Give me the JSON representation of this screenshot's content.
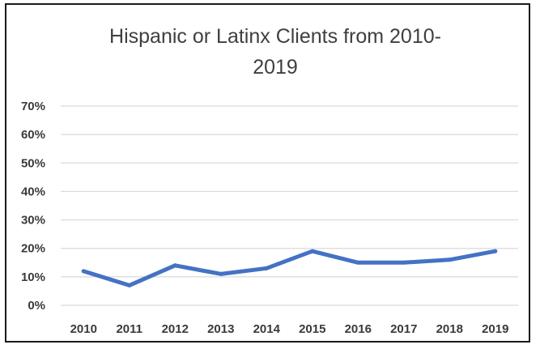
{
  "chart_data": {
    "type": "line",
    "title": "Hispanic or Latinx Clients from 2010-\n2019",
    "xlabel": "",
    "ylabel": "",
    "categories": [
      "2010",
      "2011",
      "2012",
      "2013",
      "2014",
      "2015",
      "2016",
      "2017",
      "2018",
      "2019"
    ],
    "series": [
      {
        "values": [
          12,
          7,
          14,
          11,
          13,
          19,
          15,
          15,
          16,
          19
        ]
      }
    ],
    "ylim": [
      0,
      70
    ],
    "yticks": [
      0,
      10,
      20,
      30,
      40,
      50,
      60,
      70
    ],
    "ytick_labels": [
      "0%",
      "10%",
      "20%",
      "30%",
      "40%",
      "50%",
      "60%",
      "70%"
    ],
    "grid": true,
    "legend": "none",
    "colors": {
      "line": "#4472c4",
      "grid": "#d9d9d9",
      "text": "#3f3f3f"
    }
  }
}
